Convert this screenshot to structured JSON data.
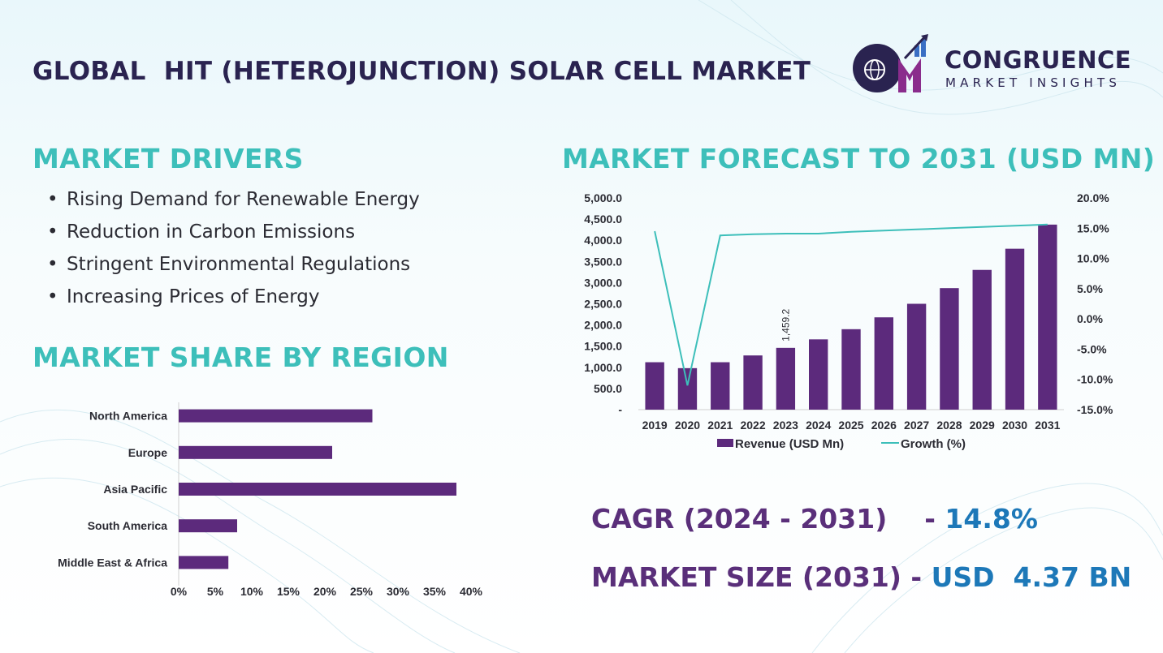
{
  "header": {
    "title": "GLOBAL  HIT (HETEROJUNCTION) SOLAR CELL MARKET",
    "logo_line1": "CONGRUENCE",
    "logo_line2": "MARKET INSIGHTS"
  },
  "drivers": {
    "heading": "MARKET DRIVERS",
    "items": [
      "Rising Demand for Renewable  Energy",
      "Reduction in Carbon Emissions",
      "Stringent Environmental  Regulations",
      "Increasing Prices of Energy"
    ]
  },
  "region": {
    "heading": "MARKET SHARE BY REGION"
  },
  "forecast": {
    "heading": "MARKET FORECAST TO 2031 (USD MN)"
  },
  "kpis": {
    "cagr_label": "CAGR (2024 - 2031)",
    "cagr_sep": "    - ",
    "cagr_value": "14.8%",
    "size_label": "MARKET SIZE (2031)",
    "size_sep": " - ",
    "size_value": "USD  4.37 BN"
  },
  "colors": {
    "bar": "#5c2a7c",
    "line": "#3dbfba",
    "accent": "#3dbfba",
    "value": "#1d78b8"
  },
  "chart_data": [
    {
      "type": "bar",
      "orientation": "horizontal",
      "categories": [
        "North America",
        "Europe",
        "Asia Pacific",
        "South America",
        "Middle East & Africa"
      ],
      "values": [
        26.5,
        21,
        38,
        8,
        6.8
      ],
      "xlim": [
        0,
        40
      ],
      "x_ticks": [
        "0%",
        "5%",
        "10%",
        "15%",
        "20%",
        "25%",
        "30%",
        "35%",
        "40%"
      ],
      "grid": false
    },
    {
      "type": "bar",
      "categories": [
        "2019",
        "2020",
        "2021",
        "2022",
        "2023",
        "2024",
        "2025",
        "2026",
        "2027",
        "2028",
        "2029",
        "2030",
        "2031"
      ],
      "series": [
        {
          "name": "Revenue (USD Mn)",
          "type": "bar",
          "axis": "left",
          "values": [
            1120,
            980,
            1120,
            1280,
            1459.2,
            1660,
            1900,
            2180,
            2500,
            2870,
            3300,
            3800,
            4370
          ]
        },
        {
          "name": "Growth (%)",
          "type": "line",
          "axis": "right",
          "values": [
            14.5,
            -11.0,
            13.8,
            14.0,
            14.1,
            14.1,
            14.4,
            14.6,
            14.8,
            15.0,
            15.2,
            15.4,
            15.6
          ]
        }
      ],
      "data_labels": [
        {
          "category": "2023",
          "text": "1,459.2"
        }
      ],
      "ylim_left": [
        0,
        5000
      ],
      "ylim_right": [
        -15,
        20
      ],
      "left_ticks": [
        "-",
        "500.0",
        "1,000.0",
        "1,500.0",
        "2,000.0",
        "2,500.0",
        "3,000.0",
        "3,500.0",
        "4,000.0",
        "4,500.0",
        "5,000.0"
      ],
      "right_ticks": [
        "-15.0%",
        "-10.0%",
        "-5.0%",
        "0.0%",
        "5.0%",
        "10.0%",
        "15.0%",
        "20.0%"
      ],
      "legend": "bottom",
      "grid": false
    }
  ]
}
